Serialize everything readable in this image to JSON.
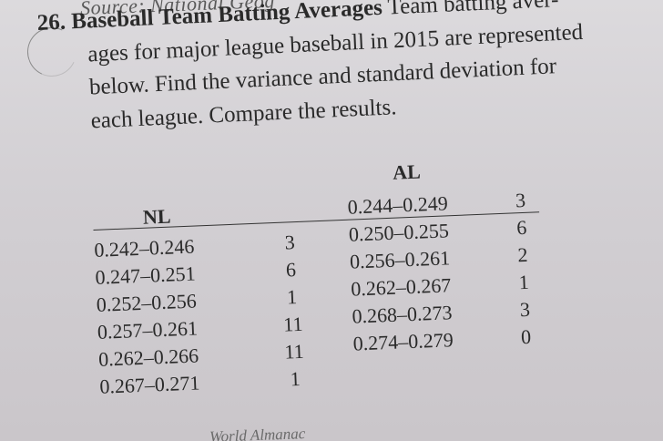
{
  "source_text": "Source: National Geog",
  "problem": {
    "number": "26.",
    "title": "Baseball Team Batting Averages",
    "lines": [
      "Team batting aver-",
      "ages for major league baseball in 2015 are represented",
      "below. Find the variance and standard deviation for",
      "each league. Compare the results."
    ]
  },
  "table": {
    "nl_header": "NL",
    "al_header": "AL",
    "nl_rows": [
      {
        "class": "0.242–0.246",
        "freq": "3"
      },
      {
        "class": "0.247–0.251",
        "freq": "6"
      },
      {
        "class": "0.252–0.256",
        "freq": "1"
      },
      {
        "class": "0.257–0.261",
        "freq": "11"
      },
      {
        "class": "0.262–0.266",
        "freq": "11"
      },
      {
        "class": "0.267–0.271",
        "freq": "1"
      }
    ],
    "al_rows": [
      {
        "class": "0.244–0.249",
        "freq": "3"
      },
      {
        "class": "0.250–0.255",
        "freq": "6"
      },
      {
        "class": "0.256–0.261",
        "freq": "2"
      },
      {
        "class": "0.262–0.267",
        "freq": "1"
      },
      {
        "class": "0.268–0.273",
        "freq": "3"
      },
      {
        "class": "0.274–0.279",
        "freq": "0"
      }
    ]
  },
  "footer_text": "World Almanac"
}
